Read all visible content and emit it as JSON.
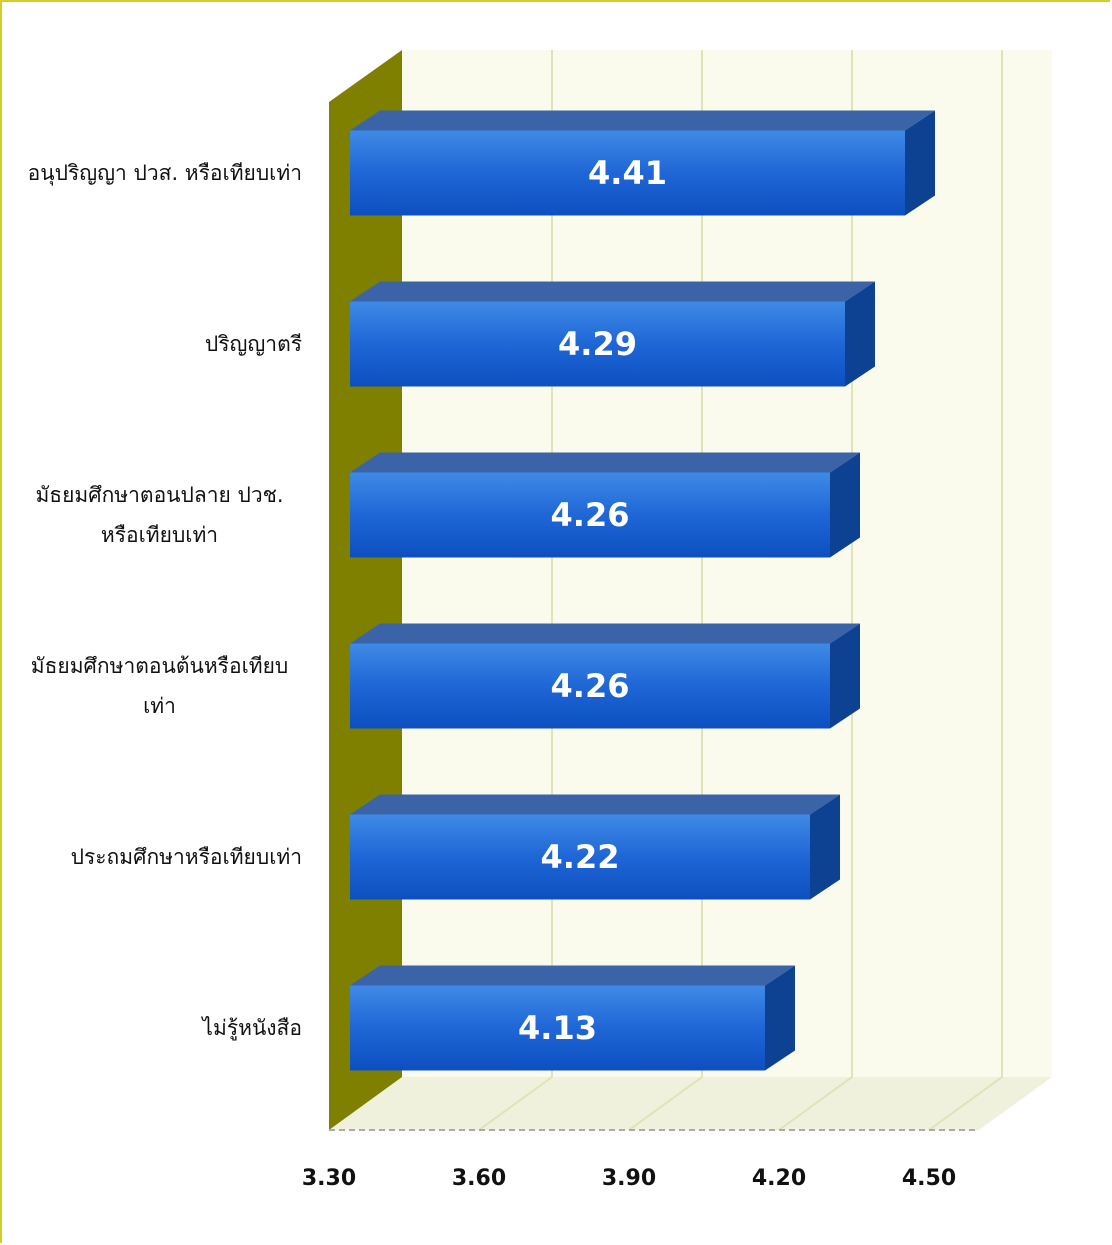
{
  "chart_data": {
    "type": "bar3d_horizontal",
    "categories": [
      "อนุปริญญา ปวส. หรือเทียบเท่า",
      "ปริญญาตรี",
      "มัธยมศึกษาตอนปลาย ปวช. หรือเทียบเท่า",
      "มัธยมศึกษาตอนต้นหรือเทียบเท่า",
      "ประถมศึกษาหรือเทียบเท่า",
      "ไม่รู้หนังสือ"
    ],
    "values": [
      4.41,
      4.29,
      4.26,
      4.26,
      4.22,
      4.13
    ],
    "color": "#1f5fd0",
    "xlim": [
      3.3,
      4.6
    ],
    "xticks": [
      {
        "value": 3.3,
        "label": "3.30"
      },
      {
        "value": 3.6,
        "label": "3.60"
      },
      {
        "value": 3.9,
        "label": "3.90"
      },
      {
        "value": 4.2,
        "label": "4.20"
      },
      {
        "value": 4.5,
        "label": "4.50"
      }
    ],
    "grid": true
  }
}
